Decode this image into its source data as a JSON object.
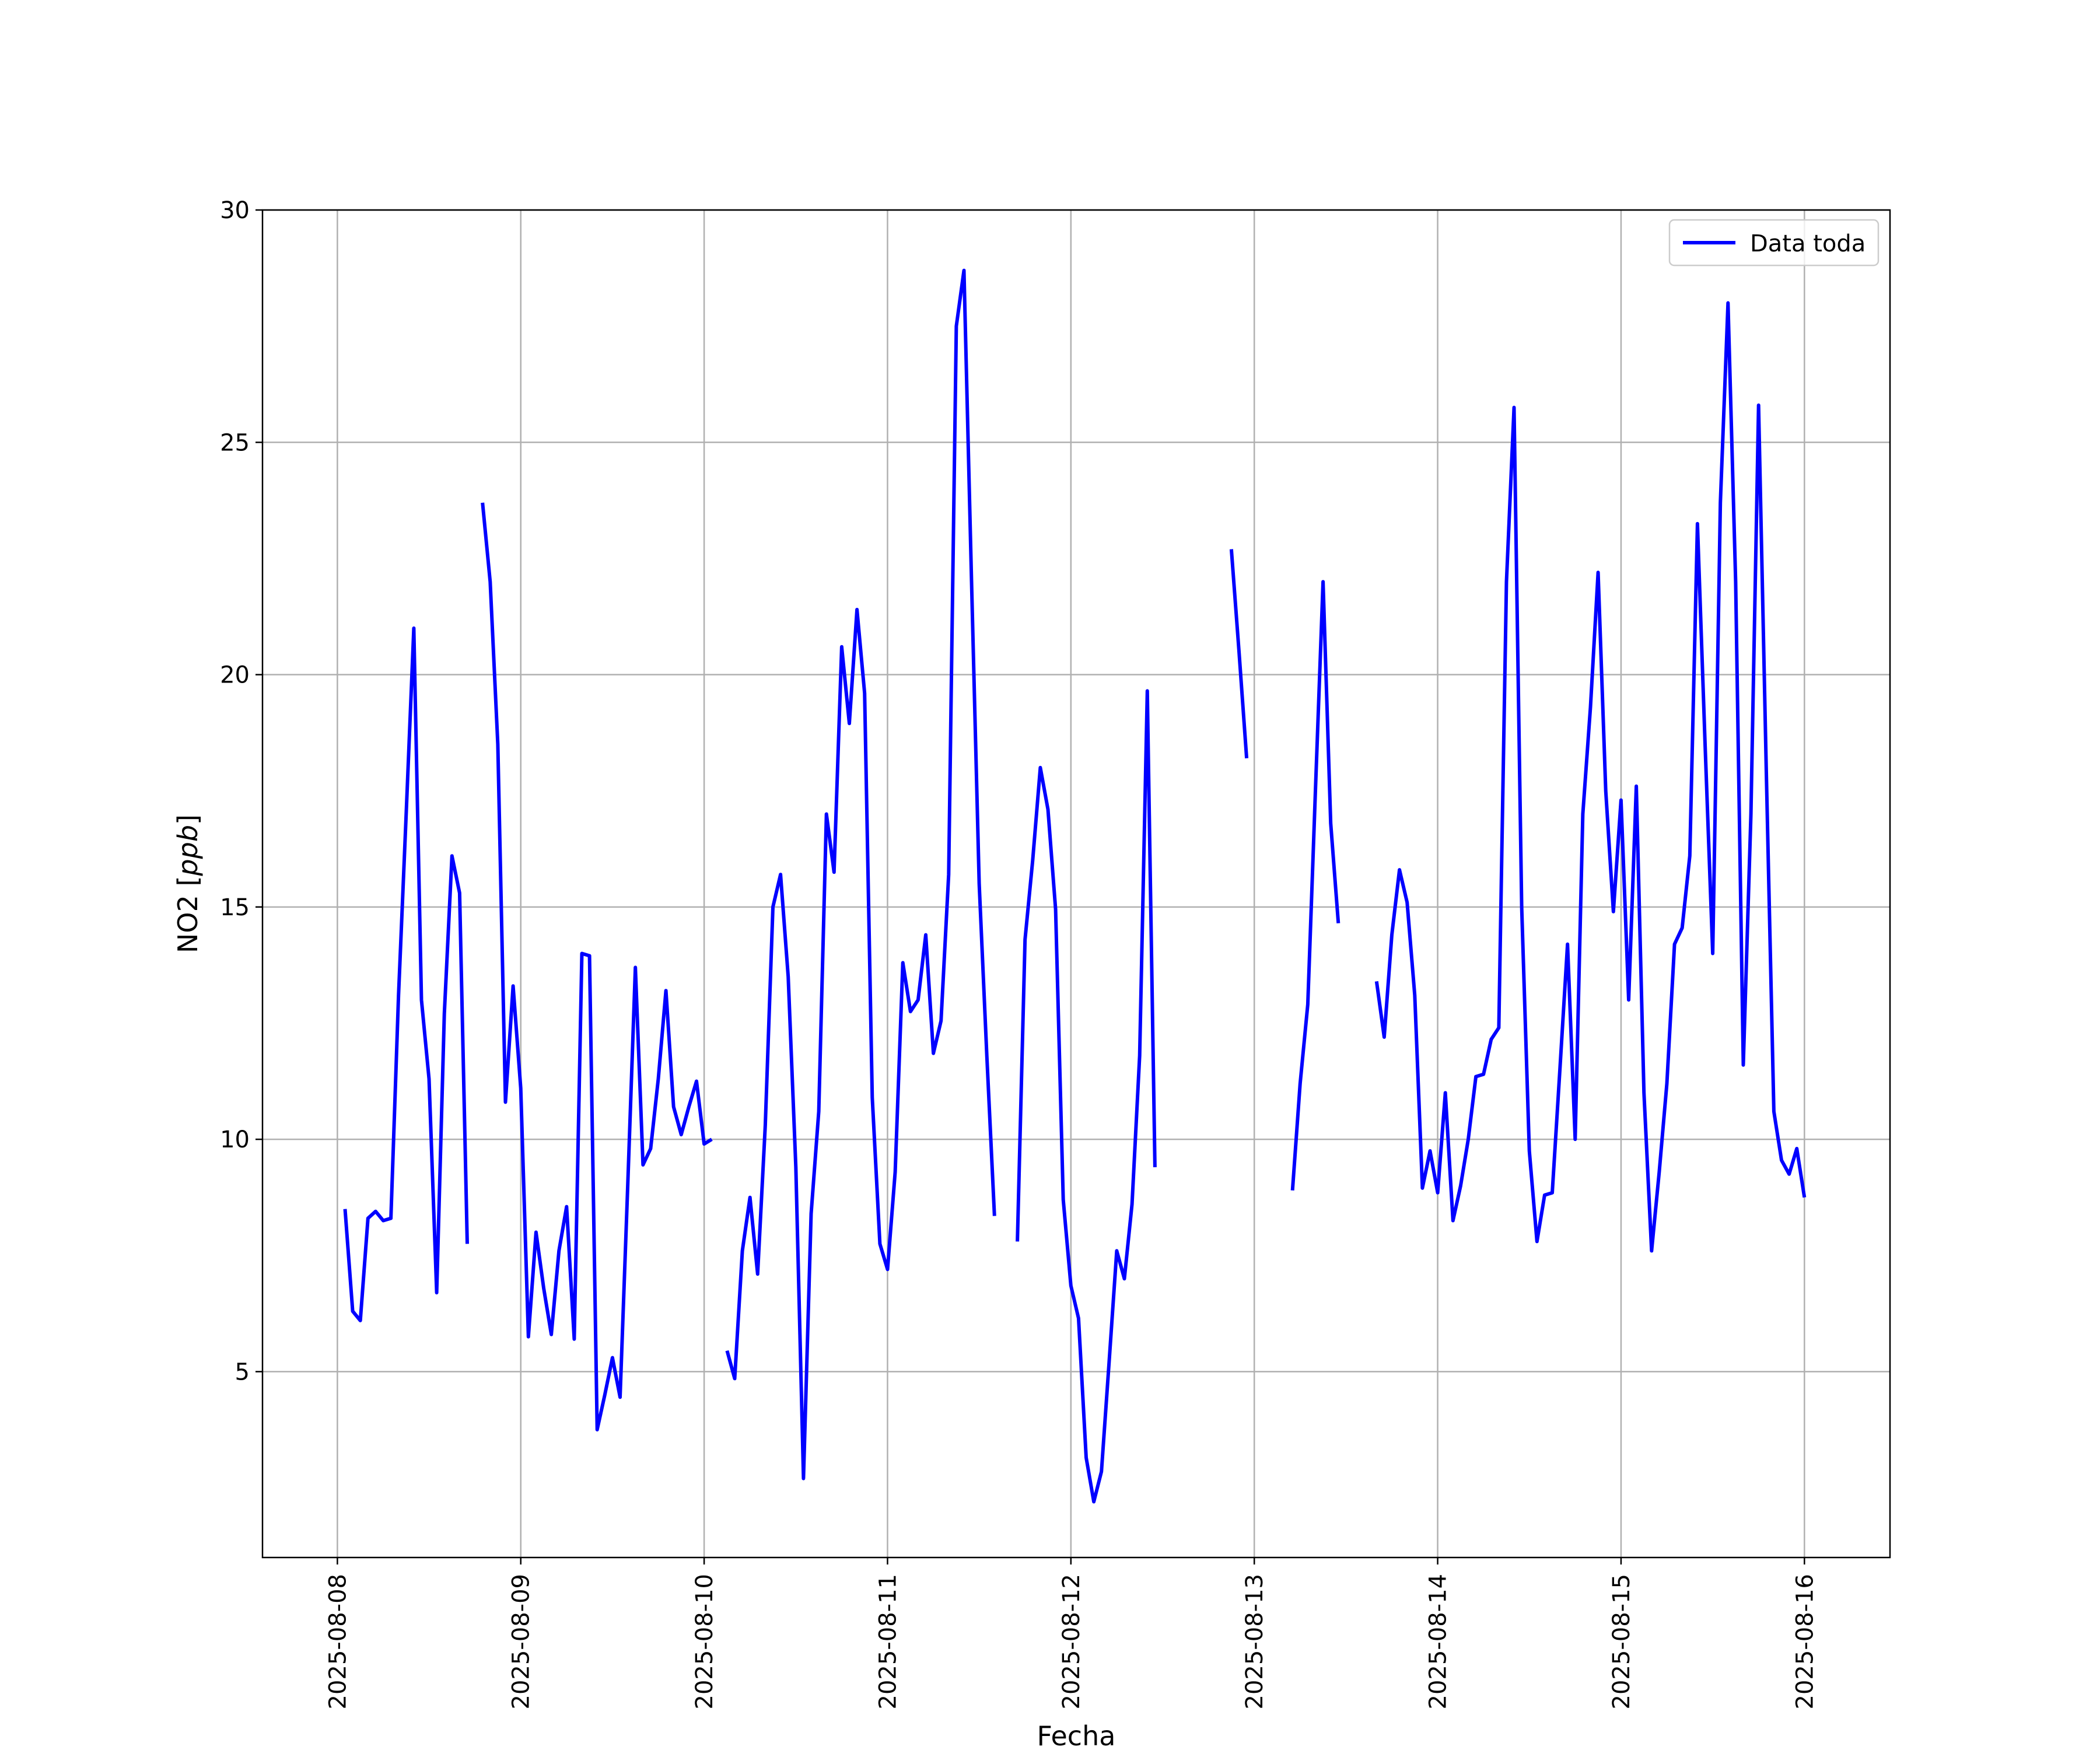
{
  "chart_data": {
    "type": "line",
    "xlabel": "Fecha",
    "ylabel": "NO2 [",
    "ylabel_unit": "ppb",
    "ylabel_close": "]",
    "ylim": [
      1,
      30
    ],
    "xlim": [
      "2025-08-07 14:12",
      "2025-08-16 11:12"
    ],
    "y_ticks": [
      "5",
      "10",
      "15",
      "20",
      "25",
      "30"
    ],
    "x_ticks": [
      "2025-08-08",
      "2025-08-09",
      "2025-08-10",
      "2025-08-11",
      "2025-08-12",
      "2025-08-13",
      "2025-08-14",
      "2025-08-15",
      "2025-08-16"
    ],
    "grid": true,
    "legend_position": "top-right",
    "colors": {
      "series": "#0000ff",
      "grid": "#b0b0b0",
      "axes": "#000000"
    },
    "series": [
      {
        "name": "Data toda",
        "points": [
          [
            "2025-08-08 01:00",
            8.5
          ],
          [
            "2025-08-08 02:00",
            6.3
          ],
          [
            "2025-08-08 03:00",
            6.1
          ],
          [
            "2025-08-08 04:00",
            8.3
          ],
          [
            "2025-08-08 05:00",
            8.45
          ],
          [
            "2025-08-08 06:00",
            8.25
          ],
          [
            "2025-08-08 07:00",
            8.3
          ],
          [
            "2025-08-08 08:00",
            13.1
          ],
          [
            "2025-08-08 09:00",
            17.0
          ],
          [
            "2025-08-08 10:00",
            21.0
          ],
          [
            "2025-08-08 11:00",
            13.0
          ],
          [
            "2025-08-08 12:00",
            11.3
          ],
          [
            "2025-08-08 13:00",
            6.7
          ],
          [
            "2025-08-08 14:00",
            12.7
          ],
          [
            "2025-08-08 15:00",
            16.1
          ],
          [
            "2025-08-08 16:00",
            15.3
          ],
          [
            "2025-08-08 17:00",
            7.75
          ],
          [
            "2025-08-08 18:00",
            null
          ],
          [
            "2025-08-08 19:00",
            23.7
          ],
          [
            "2025-08-08 20:00",
            22.0
          ],
          [
            "2025-08-08 21:00",
            18.5
          ],
          [
            "2025-08-08 22:00",
            10.8
          ],
          [
            "2025-08-08 23:00",
            13.3
          ],
          [
            "2025-08-09 00:00",
            11.1
          ],
          [
            "2025-08-09 01:00",
            5.75
          ],
          [
            "2025-08-09 02:00",
            8.0
          ],
          [
            "2025-08-09 03:00",
            6.8
          ],
          [
            "2025-08-09 04:00",
            5.8
          ],
          [
            "2025-08-09 05:00",
            7.6
          ],
          [
            "2025-08-09 06:00",
            8.55
          ],
          [
            "2025-08-09 07:00",
            5.7
          ],
          [
            "2025-08-09 08:00",
            14.0
          ],
          [
            "2025-08-09 09:00",
            13.95
          ],
          [
            "2025-08-09 10:00",
            3.75
          ],
          [
            "2025-08-09 11:00",
            4.5
          ],
          [
            "2025-08-09 12:00",
            5.3
          ],
          [
            "2025-08-09 13:00",
            4.45
          ],
          [
            "2025-08-09 14:00",
            9.0
          ],
          [
            "2025-08-09 15:00",
            13.7
          ],
          [
            "2025-08-09 16:00",
            9.45
          ],
          [
            "2025-08-09 17:00",
            9.8
          ],
          [
            "2025-08-09 18:00",
            11.3
          ],
          [
            "2025-08-09 19:00",
            13.2
          ],
          [
            "2025-08-09 20:00",
            10.7
          ],
          [
            "2025-08-09 21:00",
            10.1
          ],
          [
            "2025-08-09 22:00",
            10.7
          ],
          [
            "2025-08-09 23:00",
            11.25
          ],
          [
            "2025-08-10 00:00",
            9.9
          ],
          [
            "2025-08-10 01:00",
            10.0
          ],
          [
            "2025-08-10 02:00",
            null
          ],
          [
            "2025-08-10 03:00",
            5.45
          ],
          [
            "2025-08-10 04:00",
            4.85
          ],
          [
            "2025-08-10 05:00",
            7.6
          ],
          [
            "2025-08-10 06:00",
            8.75
          ],
          [
            "2025-08-10 07:00",
            7.1
          ],
          [
            "2025-08-10 08:00",
            10.3
          ],
          [
            "2025-08-10 09:00",
            15.0
          ],
          [
            "2025-08-10 10:00",
            15.7
          ],
          [
            "2025-08-10 11:00",
            13.5
          ],
          [
            "2025-08-10 12:00",
            9.4
          ],
          [
            "2025-08-10 13:00",
            2.7
          ],
          [
            "2025-08-10 14:00",
            8.4
          ],
          [
            "2025-08-10 15:00",
            10.6
          ],
          [
            "2025-08-10 16:00",
            17.0
          ],
          [
            "2025-08-10 17:00",
            15.75
          ],
          [
            "2025-08-10 18:00",
            20.6
          ],
          [
            "2025-08-10 19:00",
            18.95
          ],
          [
            "2025-08-10 20:00",
            21.4
          ],
          [
            "2025-08-10 21:00",
            19.6
          ],
          [
            "2025-08-10 22:00",
            10.9
          ],
          [
            "2025-08-10 23:00",
            7.75
          ],
          [
            "2025-08-11 00:00",
            7.2
          ],
          [
            "2025-08-11 01:00",
            9.3
          ],
          [
            "2025-08-11 02:00",
            13.8
          ],
          [
            "2025-08-11 03:00",
            12.75
          ],
          [
            "2025-08-11 04:00",
            13.0
          ],
          [
            "2025-08-11 05:00",
            14.4
          ],
          [
            "2025-08-11 06:00",
            11.85
          ],
          [
            "2025-08-11 07:00",
            12.55
          ],
          [
            "2025-08-11 08:00",
            15.7
          ],
          [
            "2025-08-11 09:00",
            27.5
          ],
          [
            "2025-08-11 10:00",
            28.7
          ],
          [
            "2025-08-11 11:00",
            22.0
          ],
          [
            "2025-08-11 12:00",
            15.5
          ],
          [
            "2025-08-11 13:00",
            11.8
          ],
          [
            "2025-08-11 14:00",
            8.35
          ],
          [
            "2025-08-11 15:00",
            null
          ],
          [
            "2025-08-11 16:00",
            null
          ],
          [
            "2025-08-11 17:00",
            7.8
          ],
          [
            "2025-08-11 18:00",
            14.3
          ],
          [
            "2025-08-11 19:00",
            16.0
          ],
          [
            "2025-08-11 20:00",
            18.0
          ],
          [
            "2025-08-11 21:00",
            17.1
          ],
          [
            "2025-08-11 22:00",
            14.95
          ],
          [
            "2025-08-11 23:00",
            8.7
          ],
          [
            "2025-08-12 00:00",
            6.85
          ],
          [
            "2025-08-12 01:00",
            6.15
          ],
          [
            "2025-08-12 02:00",
            3.15
          ],
          [
            "2025-08-12 03:00",
            2.2
          ],
          [
            "2025-08-12 04:00",
            2.85
          ],
          [
            "2025-08-12 05:00",
            5.2
          ],
          [
            "2025-08-12 06:00",
            7.6
          ],
          [
            "2025-08-12 07:00",
            7.0
          ],
          [
            "2025-08-12 08:00",
            8.6
          ],
          [
            "2025-08-12 09:00",
            11.8
          ],
          [
            "2025-08-12 10:00",
            19.65
          ],
          [
            "2025-08-12 11:00",
            9.4
          ],
          [
            "2025-08-12 12:00",
            null
          ],
          [
            "2025-08-12 21:00",
            22.7
          ],
          [
            "2025-08-12 22:00",
            20.5
          ],
          [
            "2025-08-12 23:00",
            18.2
          ],
          [
            "2025-08-13 00:00",
            null
          ],
          [
            "2025-08-13 05:00",
            8.9
          ],
          [
            "2025-08-13 06:00",
            11.2
          ],
          [
            "2025-08-13 07:00",
            12.9
          ],
          [
            "2025-08-13 08:00",
            17.5
          ],
          [
            "2025-08-13 09:00",
            22.0
          ],
          [
            "2025-08-13 10:00",
            16.8
          ],
          [
            "2025-08-13 11:00",
            14.65
          ],
          [
            "2025-08-13 12:00",
            null
          ],
          [
            "2025-08-13 16:00",
            13.4
          ],
          [
            "2025-08-13 17:00",
            12.2
          ],
          [
            "2025-08-13 18:00",
            14.4
          ],
          [
            "2025-08-13 19:00",
            15.8
          ],
          [
            "2025-08-13 20:00",
            15.1
          ],
          [
            "2025-08-13 21:00",
            13.1
          ],
          [
            "2025-08-13 22:00",
            8.95
          ],
          [
            "2025-08-13 23:00",
            9.75
          ],
          [
            "2025-08-14 00:00",
            8.85
          ],
          [
            "2025-08-14 01:00",
            11.0
          ],
          [
            "2025-08-14 02:00",
            8.25
          ],
          [
            "2025-08-14 03:00",
            9.0
          ],
          [
            "2025-08-14 04:00",
            10.0
          ],
          [
            "2025-08-14 05:00",
            11.35
          ],
          [
            "2025-08-14 06:00",
            11.4
          ],
          [
            "2025-08-14 07:00",
            12.15
          ],
          [
            "2025-08-14 08:00",
            12.4
          ],
          [
            "2025-08-14 09:00",
            22.0
          ],
          [
            "2025-08-14 10:00",
            25.75
          ],
          [
            "2025-08-14 11:00",
            15.0
          ],
          [
            "2025-08-14 12:00",
            9.75
          ],
          [
            "2025-08-14 13:00",
            7.8
          ],
          [
            "2025-08-14 14:00",
            8.8
          ],
          [
            "2025-08-14 15:00",
            8.85
          ],
          [
            "2025-08-14 16:00",
            11.5
          ],
          [
            "2025-08-14 17:00",
            14.2
          ],
          [
            "2025-08-14 18:00",
            10.0
          ],
          [
            "2025-08-14 19:00",
            17.0
          ],
          [
            "2025-08-14 20:00",
            19.3
          ],
          [
            "2025-08-14 21:00",
            22.2
          ],
          [
            "2025-08-14 22:00",
            17.5
          ],
          [
            "2025-08-14 23:00",
            14.9
          ],
          [
            "2025-08-15 00:00",
            17.3
          ],
          [
            "2025-08-15 01:00",
            13.0
          ],
          [
            "2025-08-15 02:00",
            17.6
          ],
          [
            "2025-08-15 03:00",
            11.0
          ],
          [
            "2025-08-15 04:00",
            7.6
          ],
          [
            "2025-08-15 05:00",
            9.3
          ],
          [
            "2025-08-15 06:00",
            11.2
          ],
          [
            "2025-08-15 07:00",
            14.2
          ],
          [
            "2025-08-15 08:00",
            14.55
          ],
          [
            "2025-08-15 09:00",
            16.1
          ],
          [
            "2025-08-15 10:00",
            23.25
          ],
          [
            "2025-08-15 11:00",
            18.5
          ],
          [
            "2025-08-15 12:00",
            14.0
          ],
          [
            "2025-08-15 13:00",
            23.7
          ],
          [
            "2025-08-15 14:00",
            28.0
          ],
          [
            "2025-08-15 15:00",
            22.0
          ],
          [
            "2025-08-15 16:00",
            11.6
          ],
          [
            "2025-08-15 17:00",
            17.0
          ],
          [
            "2025-08-15 18:00",
            25.8
          ],
          [
            "2025-08-15 19:00",
            18.0
          ],
          [
            "2025-08-15 20:00",
            10.6
          ],
          [
            "2025-08-15 21:00",
            9.55
          ],
          [
            "2025-08-15 22:00",
            9.25
          ],
          [
            "2025-08-15 23:00",
            9.8
          ],
          [
            "2025-08-16 00:00",
            8.75
          ]
        ]
      }
    ]
  }
}
